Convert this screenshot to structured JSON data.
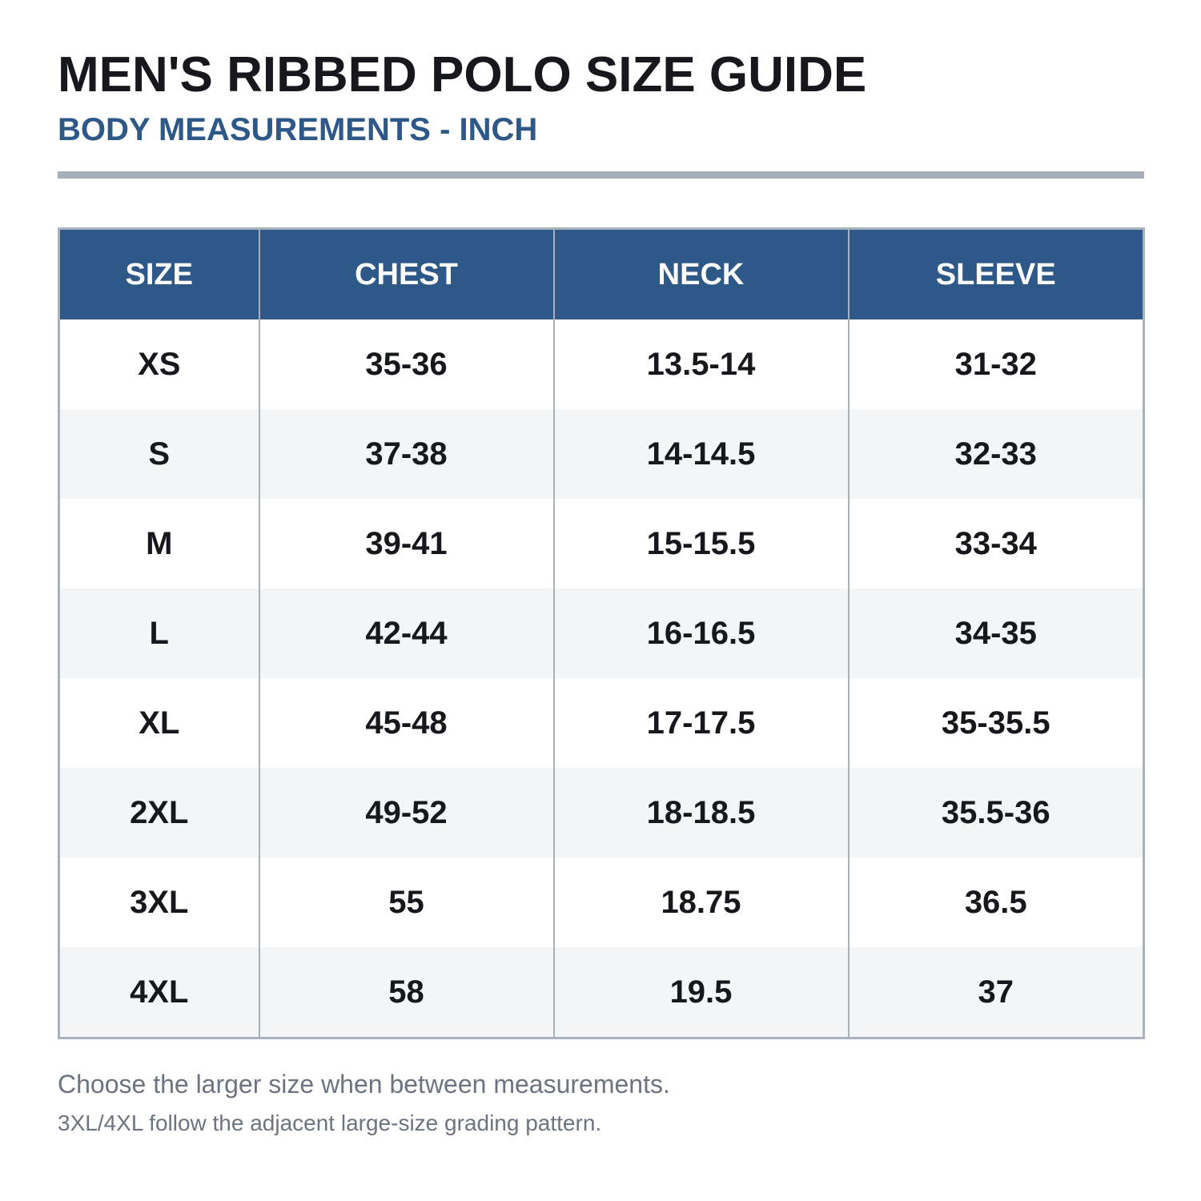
{
  "header": {
    "title": "MEN'S RIBBED POLO SIZE GUIDE",
    "subtitle": "BODY MEASUREMENTS - INCH"
  },
  "table": {
    "columns": [
      "SIZE",
      "CHEST",
      "NECK",
      "SLEEVE"
    ],
    "rows": [
      [
        "XS",
        "35-36",
        "13.5-14",
        "31-32"
      ],
      [
        "S",
        "37-38",
        "14-14.5",
        "32-33"
      ],
      [
        "M",
        "39-41",
        "15-15.5",
        "33-34"
      ],
      [
        "L",
        "42-44",
        "16-16.5",
        "34-35"
      ],
      [
        "XL",
        "45-48",
        "17-17.5",
        "35-35.5"
      ],
      [
        "2XL",
        "49-52",
        "18-18.5",
        "35.5-36"
      ],
      [
        "3XL",
        "55",
        "18.75",
        "36.5"
      ],
      [
        "4XL",
        "58",
        "19.5",
        "37"
      ]
    ]
  },
  "notes": [
    "Choose the larger size when between measurements.",
    "3XL/4XL follow the adjacent large-size grading pattern."
  ]
}
